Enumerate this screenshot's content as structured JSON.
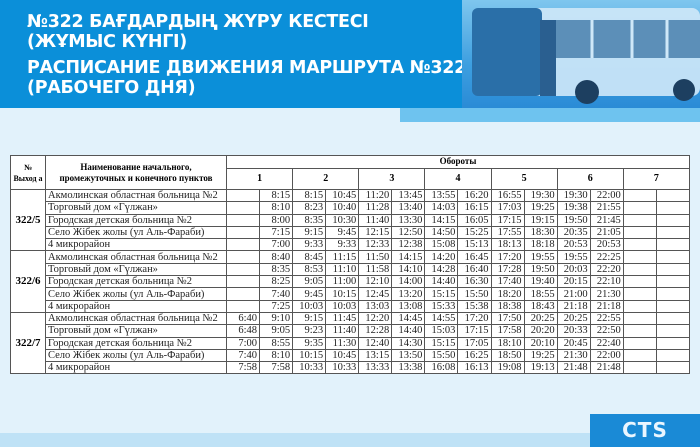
{
  "header": {
    "title_kz_1": "№322 БАҒДАРДЫҢ ЖҮРУ КЕСТЕСІ",
    "title_kz_2": "(ЖҰМЫС КҮНГІ)",
    "title_ru_1": "РАСПИСАНИЕ ДВИЖЕНИЯ МАРШРУТА №322",
    "title_ru_2": "(РАБОЧЕГО ДНЯ)"
  },
  "logo": "CTS",
  "table": {
    "col_exit": "№ Выход а",
    "col_name": "Наименование начального, промежуточных и конечного пунктов",
    "col_turns": "Обороты",
    "turns": [
      "1",
      "2",
      "3",
      "4",
      "5",
      "6",
      "7"
    ],
    "groups": [
      {
        "id": "322/5",
        "rows": [
          {
            "name": "Акмолинская областная больница №2",
            "times": [
              "",
              "8:15",
              "8:15",
              "10:45",
              "11:20",
              "13:45",
              "13:55",
              "16:20",
              "16:55",
              "19:30",
              "19:30",
              "22:00",
              "",
              ""
            ]
          },
          {
            "name": "Торговый дом «Гүлжан»",
            "times": [
              "",
              "8:10",
              "8:23",
              "10:40",
              "11:28",
              "13:40",
              "14:03",
              "16:15",
              "17:03",
              "19:25",
              "19:38",
              "21:55",
              "",
              ""
            ]
          },
          {
            "name": "Городская детская больница №2",
            "times": [
              "",
              "8:00",
              "8:35",
              "10:30",
              "11:40",
              "13:30",
              "14:15",
              "16:05",
              "17:15",
              "19:15",
              "19:50",
              "21:45",
              "",
              ""
            ]
          },
          {
            "name": "Село Жібек жолы (ул Аль-Фараби)",
            "times": [
              "",
              "7:15",
              "9:15",
              "9:45",
              "12:15",
              "12:50",
              "14:50",
              "15:25",
              "17:55",
              "18:30",
              "20:35",
              "21:05",
              "",
              ""
            ]
          },
          {
            "name": "4 микрорайон",
            "times": [
              "",
              "7:00",
              "9:33",
              "9:33",
              "12:33",
              "12:38",
              "15:08",
              "15:13",
              "18:13",
              "18:18",
              "20:53",
              "20:53",
              "",
              ""
            ]
          }
        ]
      },
      {
        "id": "322/6",
        "rows": [
          {
            "name": "Акмолинская областная больница №2",
            "times": [
              "",
              "8:40",
              "8:45",
              "11:15",
              "11:50",
              "14:15",
              "14:20",
              "16:45",
              "17:20",
              "19:55",
              "19:55",
              "22:25",
              "",
              ""
            ]
          },
          {
            "name": "Торговый дом «Гүлжан»",
            "times": [
              "",
              "8:35",
              "8:53",
              "11:10",
              "11:58",
              "14:10",
              "14:28",
              "16:40",
              "17:28",
              "19:50",
              "20:03",
              "22:20",
              "",
              ""
            ]
          },
          {
            "name": "Городская детская больница №2",
            "times": [
              "",
              "8:25",
              "9:05",
              "11:00",
              "12:10",
              "14:00",
              "14:40",
              "16:30",
              "17:40",
              "19:40",
              "20:15",
              "22:10",
              "",
              ""
            ]
          },
          {
            "name": "Село Жібек жолы (ул Аль-Фараби)",
            "times": [
              "",
              "7:40",
              "9:45",
              "10:15",
              "12:45",
              "13:20",
              "15:15",
              "15:50",
              "18:20",
              "18:55",
              "21:00",
              "21:30",
              "",
              ""
            ]
          },
          {
            "name": "4 микрорайон",
            "times": [
              "",
              "7:25",
              "10:03",
              "10:03",
              "13:03",
              "13:08",
              "15:33",
              "15:38",
              "18:38",
              "18:43",
              "21:18",
              "21:18",
              "",
              ""
            ]
          }
        ]
      },
      {
        "id": "322/7",
        "rows": [
          {
            "name": "Акмолинская областная больница №2",
            "times": [
              "6:40",
              "9:10",
              "9:15",
              "11:45",
              "12:20",
              "14:45",
              "14:55",
              "17:20",
              "17:50",
              "20:25",
              "20:25",
              "22:55",
              "",
              ""
            ]
          },
          {
            "name": "Торговый дом «Гүлжан»",
            "times": [
              "6:48",
              "9:05",
              "9:23",
              "11:40",
              "12:28",
              "14:40",
              "15:03",
              "17:15",
              "17:58",
              "20:20",
              "20:33",
              "22:50",
              "",
              ""
            ]
          },
          {
            "name": "Городская детская больница №2",
            "times": [
              "7:00",
              "8:55",
              "9:35",
              "11:30",
              "12:40",
              "14:30",
              "15:15",
              "17:05",
              "18:10",
              "20:10",
              "20:45",
              "22:40",
              "",
              ""
            ]
          },
          {
            "name": "Село Жібек жолы (ул Аль-Фараби)",
            "times": [
              "7:40",
              "8:10",
              "10:15",
              "10:45",
              "13:15",
              "13:50",
              "15:50",
              "16:25",
              "18:50",
              "19:25",
              "21:30",
              "22:00",
              "",
              ""
            ]
          },
          {
            "name": "4 микрорайон",
            "times": [
              "7:58",
              "7:58",
              "10:33",
              "10:33",
              "13:33",
              "13:38",
              "16:08",
              "16:13",
              "19:08",
              "19:13",
              "21:48",
              "21:48",
              "",
              ""
            ]
          }
        ]
      }
    ]
  },
  "colors": {
    "header_blue": "#0b8fd9",
    "background": "#e2f2fb",
    "logo_blue": "#1a8ad6"
  }
}
